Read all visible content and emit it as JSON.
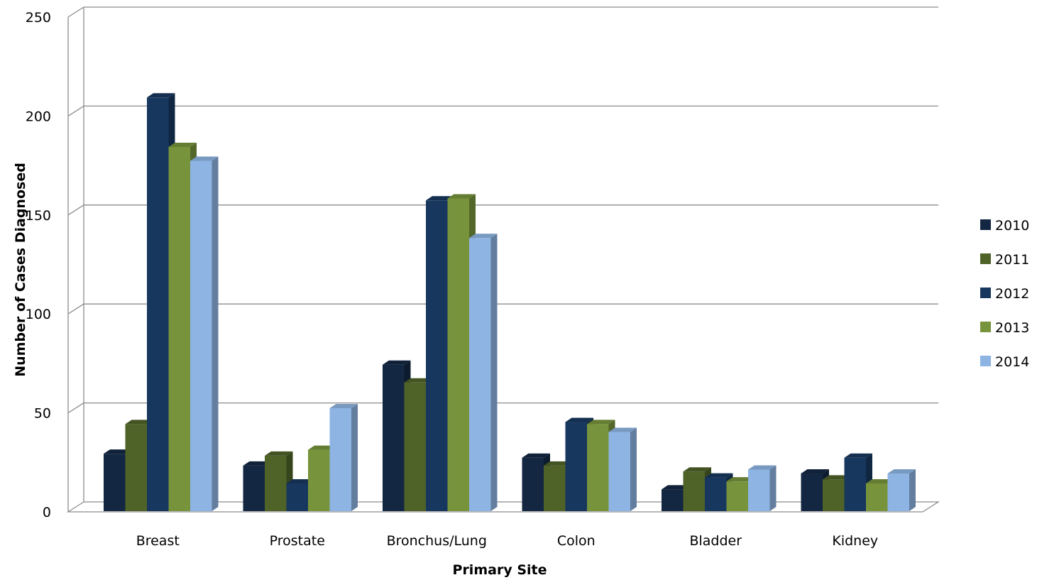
{
  "chart_data": {
    "type": "bar",
    "title": "",
    "xlabel": "Primary Site",
    "ylabel": "Number of Cases Diagnosed",
    "ylim": [
      0,
      250
    ],
    "yticks": [
      0,
      50,
      100,
      150,
      200,
      250
    ],
    "grid": true,
    "legend_position": "right",
    "categories": [
      "Breast",
      "Prostate",
      "Bronchus/Lung",
      "Colon",
      "Bladder",
      "Kidney"
    ],
    "series": [
      {
        "name": "2010",
        "color": "#132742",
        "values": [
          29,
          23,
          74,
          27,
          11,
          19
        ]
      },
      {
        "name": "2011",
        "color": "#4F6228",
        "values": [
          44,
          28,
          65,
          23,
          20,
          16
        ]
      },
      {
        "name": "2012",
        "color": "#17375E",
        "values": [
          209,
          14,
          157,
          45,
          17,
          27
        ]
      },
      {
        "name": "2013",
        "color": "#77933C",
        "values": [
          184,
          31,
          158,
          44,
          15,
          14
        ]
      },
      {
        "name": "2014",
        "color": "#8DB4E2",
        "values": [
          177,
          52,
          138,
          40,
          21,
          19
        ]
      }
    ]
  }
}
